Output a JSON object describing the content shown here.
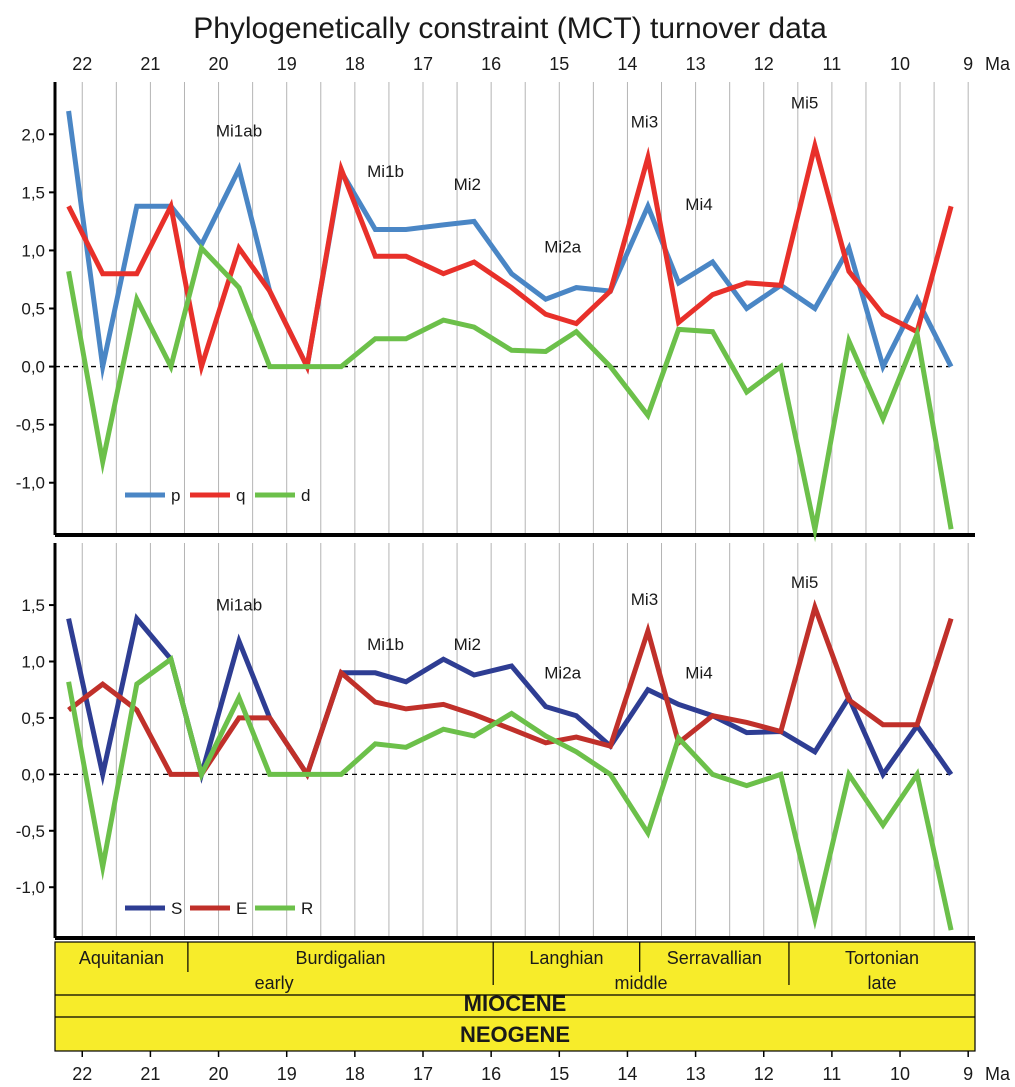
{
  "title": "Phylogenetically constraint (MCT) turnover data",
  "axis_unit": "Ma",
  "x_ticks": [
    22,
    21,
    20,
    19,
    18,
    17,
    16,
    15,
    14,
    13,
    12,
    11,
    10,
    9
  ],
  "colors": {
    "p": "#4a86c5",
    "q": "#e8302a",
    "d": "#6cc04a",
    "S": "#2e3d93",
    "E": "#c0302a",
    "R": "#6cc04a",
    "timescale_fill": "#f7ec2a",
    "grid": "#b4b4b4",
    "axis": "#000000"
  },
  "chart_data": [
    {
      "type": "line",
      "x_unit": "Ma",
      "xlim": [
        22.4,
        8.9
      ],
      "ylim": [
        -1.45,
        2.45
      ],
      "y_ticks": [
        "2,0",
        "1,5",
        "1,0",
        "0,5",
        "0,0",
        "-0,5",
        "-1,0"
      ],
      "y_tick_values": [
        2.0,
        1.5,
        1.0,
        0.5,
        0.0,
        -0.5,
        -1.0
      ],
      "reference_line": 0,
      "x": [
        22.2,
        21.7,
        21.2,
        20.7,
        20.25,
        19.7,
        19.25,
        18.7,
        18.2,
        17.7,
        17.25,
        16.7,
        16.25,
        15.7,
        15.2,
        14.75,
        14.25,
        13.7,
        13.25,
        12.75,
        12.25,
        11.75,
        11.25,
        10.75,
        10.25,
        9.75,
        9.25
      ],
      "series": [
        {
          "name": "p",
          "values": [
            2.2,
            0.0,
            1.38,
            1.38,
            1.05,
            1.7,
            0.65,
            0.0,
            1.68,
            1.18,
            1.18,
            1.22,
            1.25,
            0.8,
            0.58,
            0.68,
            0.65,
            1.38,
            0.72,
            0.9,
            0.5,
            0.7,
            0.5,
            1.02,
            0.0,
            0.58,
            0.0
          ]
        },
        {
          "name": "q",
          "values": [
            1.38,
            0.8,
            0.8,
            1.38,
            0.0,
            1.02,
            0.65,
            0.0,
            1.7,
            0.95,
            0.95,
            0.8,
            0.9,
            0.68,
            0.45,
            0.37,
            0.65,
            1.8,
            0.38,
            0.62,
            0.72,
            0.7,
            1.9,
            0.82,
            0.45,
            0.3,
            1.38
          ]
        },
        {
          "name": "d",
          "values": [
            0.82,
            -0.82,
            0.58,
            0.0,
            1.02,
            0.68,
            0.0,
            0.0,
            0.0,
            0.24,
            0.24,
            0.4,
            0.34,
            0.14,
            0.13,
            0.3,
            0.0,
            -0.42,
            0.32,
            0.3,
            -0.22,
            0.0,
            -1.4,
            0.22,
            -0.45,
            0.28,
            -1.4
          ]
        }
      ],
      "annotations": [
        {
          "text": "Mi1ab",
          "x": 19.7,
          "y": 1.98
        },
        {
          "text": "Mi1b",
          "x": 17.55,
          "y": 1.63
        },
        {
          "text": "Mi2",
          "x": 16.35,
          "y": 1.52
        },
        {
          "text": "Mi2a",
          "x": 14.95,
          "y": 0.98
        },
        {
          "text": "Mi3",
          "x": 13.75,
          "y": 2.06
        },
        {
          "text": "Mi4",
          "x": 12.95,
          "y": 1.35
        },
        {
          "text": "Mi5",
          "x": 11.4,
          "y": 2.22
        }
      ],
      "legend": [
        "p",
        "q",
        "d"
      ],
      "legend_position": "bottom-left"
    },
    {
      "type": "line",
      "x_unit": "Ma",
      "xlim": [
        22.4,
        8.9
      ],
      "ylim": [
        -1.45,
        2.05
      ],
      "y_ticks": [
        "1,5",
        "1,0",
        "0,5",
        "0,0",
        "-0,5",
        "-1,0"
      ],
      "y_tick_values": [
        1.5,
        1.0,
        0.5,
        0.0,
        -0.5,
        -1.0
      ],
      "reference_line": 0,
      "x": [
        22.2,
        21.7,
        21.2,
        20.7,
        20.25,
        19.7,
        19.25,
        18.7,
        18.2,
        17.7,
        17.25,
        16.7,
        16.25,
        15.7,
        15.2,
        14.75,
        14.25,
        13.7,
        13.25,
        12.75,
        12.25,
        11.75,
        11.25,
        10.75,
        10.25,
        9.75,
        9.25
      ],
      "series": [
        {
          "name": "S",
          "values": [
            1.38,
            0.0,
            1.38,
            1.02,
            0.0,
            1.18,
            0.5,
            0.0,
            0.9,
            0.9,
            0.82,
            1.02,
            0.88,
            0.96,
            0.6,
            0.52,
            0.25,
            0.75,
            0.62,
            0.52,
            0.37,
            0.38,
            0.2,
            0.68,
            0.0,
            0.43,
            0.0
          ]
        },
        {
          "name": "E",
          "values": [
            0.57,
            0.8,
            0.57,
            0.0,
            0.0,
            0.5,
            0.5,
            0.0,
            0.9,
            0.64,
            0.58,
            0.62,
            0.53,
            0.4,
            0.28,
            0.33,
            0.25,
            1.27,
            0.28,
            0.52,
            0.46,
            0.38,
            1.48,
            0.66,
            0.44,
            0.44,
            1.38
          ]
        },
        {
          "name": "R",
          "values": [
            0.82,
            -0.82,
            0.8,
            1.02,
            0.0,
            0.68,
            0.0,
            0.0,
            0.0,
            0.27,
            0.24,
            0.4,
            0.34,
            0.54,
            0.34,
            0.2,
            0.0,
            -0.52,
            0.32,
            0.0,
            -0.1,
            0.0,
            -1.28,
            0.0,
            -0.45,
            0.0,
            -1.38
          ]
        }
      ],
      "annotations": [
        {
          "text": "Mi1ab",
          "x": 19.7,
          "y": 1.45
        },
        {
          "text": "Mi1b",
          "x": 17.55,
          "y": 1.1
        },
        {
          "text": "Mi2",
          "x": 16.35,
          "y": 1.1
        },
        {
          "text": "Mi2a",
          "x": 14.95,
          "y": 0.85
        },
        {
          "text": "Mi3",
          "x": 13.75,
          "y": 1.5
        },
        {
          "text": "Mi4",
          "x": 12.95,
          "y": 0.85
        },
        {
          "text": "Mi5",
          "x": 11.4,
          "y": 1.65
        }
      ],
      "legend": [
        "S",
        "E",
        "R"
      ],
      "legend_position": "bottom-left"
    }
  ],
  "timescale": {
    "stages": [
      {
        "name": "Aquitanian",
        "from": 22.4,
        "to": 20.45
      },
      {
        "name": "Burdigalian",
        "from": 20.45,
        "to": 15.97
      },
      {
        "name": "Langhian",
        "from": 15.97,
        "to": 13.82
      },
      {
        "name": "Serravallian",
        "from": 13.82,
        "to": 11.63
      },
      {
        "name": "Tortonian",
        "from": 11.63,
        "to": 8.9
      }
    ],
    "subepochs": [
      {
        "name": "early",
        "from": 22.4,
        "to": 15.97
      },
      {
        "name": "middle",
        "from": 15.97,
        "to": 11.63
      },
      {
        "name": "late",
        "from": 11.63,
        "to": 8.9
      }
    ],
    "epoch": "MIOCENE",
    "period": "NEOGENE"
  }
}
